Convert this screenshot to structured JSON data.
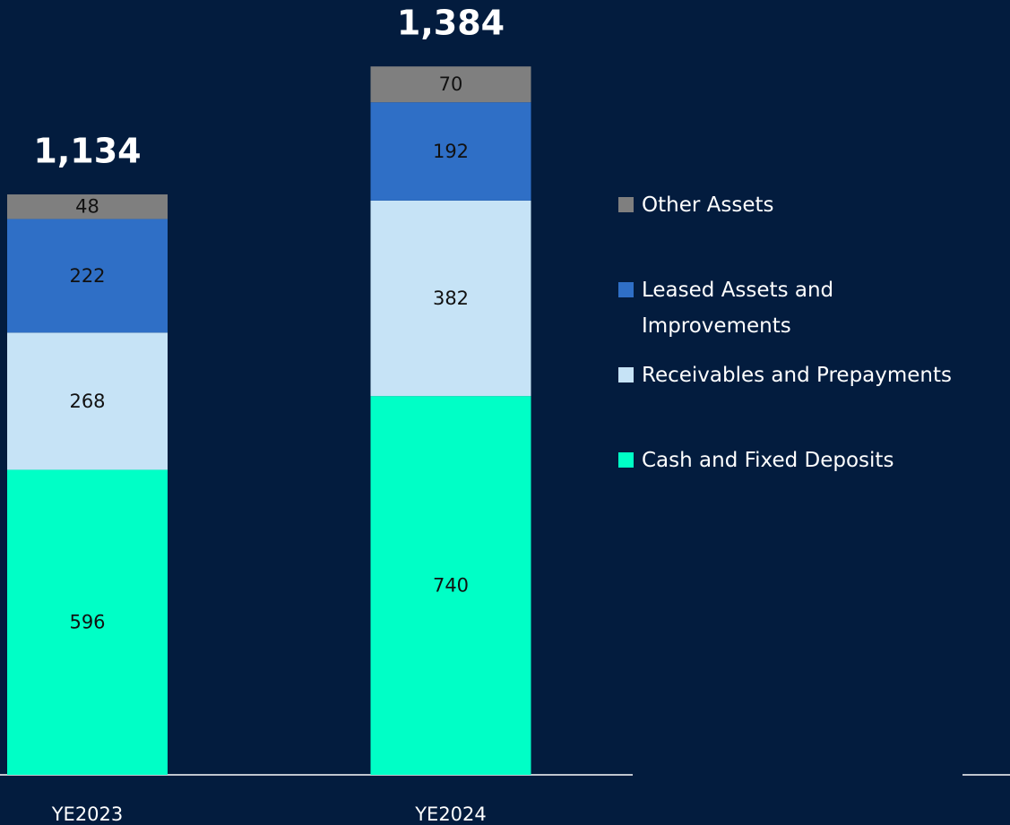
{
  "chart_data": {
    "type": "stacked_bar",
    "categories": [
      "YE2023",
      "YE2024"
    ],
    "series": [
      {
        "name": "Cash and Fixed Deposits",
        "color": "#00ffc6",
        "values": [
          596,
          740
        ]
      },
      {
        "name": "Receivables and Prepayments",
        "color": "#c6e3f6",
        "values": [
          268,
          382
        ]
      },
      {
        "name": "Leased Assets and Improvements",
        "color": "#2f6fc6",
        "values": [
          222,
          192
        ]
      },
      {
        "name": "Other Assets",
        "color": "#7f7f7f",
        "values": [
          48,
          70
        ]
      }
    ],
    "totals": [
      1134,
      1384
    ],
    "total_labels": [
      "1,134",
      "1,384"
    ],
    "legend": "right"
  }
}
